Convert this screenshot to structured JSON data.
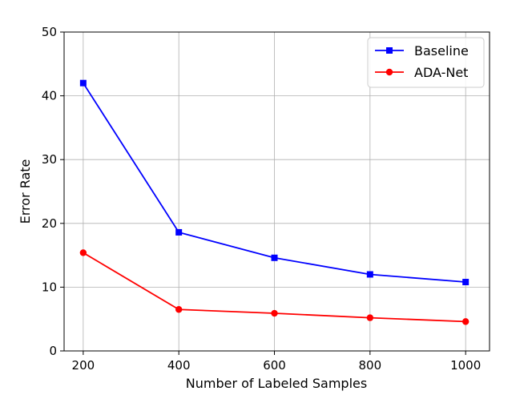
{
  "chart_data": {
    "type": "line",
    "xlabel": "Number of Labeled Samples",
    "ylabel": "Error Rate",
    "x": [
      200,
      400,
      600,
      800,
      1000
    ],
    "xlim": [
      160,
      1050
    ],
    "ylim": [
      0,
      50
    ],
    "xticks": [
      "200",
      "400",
      "600",
      "800",
      "1000"
    ],
    "yticks": [
      "0",
      "10",
      "20",
      "30",
      "40",
      "50"
    ],
    "grid": true,
    "legend_position": "top-right",
    "series": [
      {
        "name": "Baseline",
        "values": [
          42.0,
          18.6,
          14.6,
          12.0,
          10.8
        ],
        "color": "#0000ff",
        "marker": "square"
      },
      {
        "name": "ADA-Net",
        "values": [
          15.4,
          6.5,
          5.9,
          5.2,
          4.6
        ],
        "color": "#ff0000",
        "marker": "circle"
      }
    ]
  }
}
